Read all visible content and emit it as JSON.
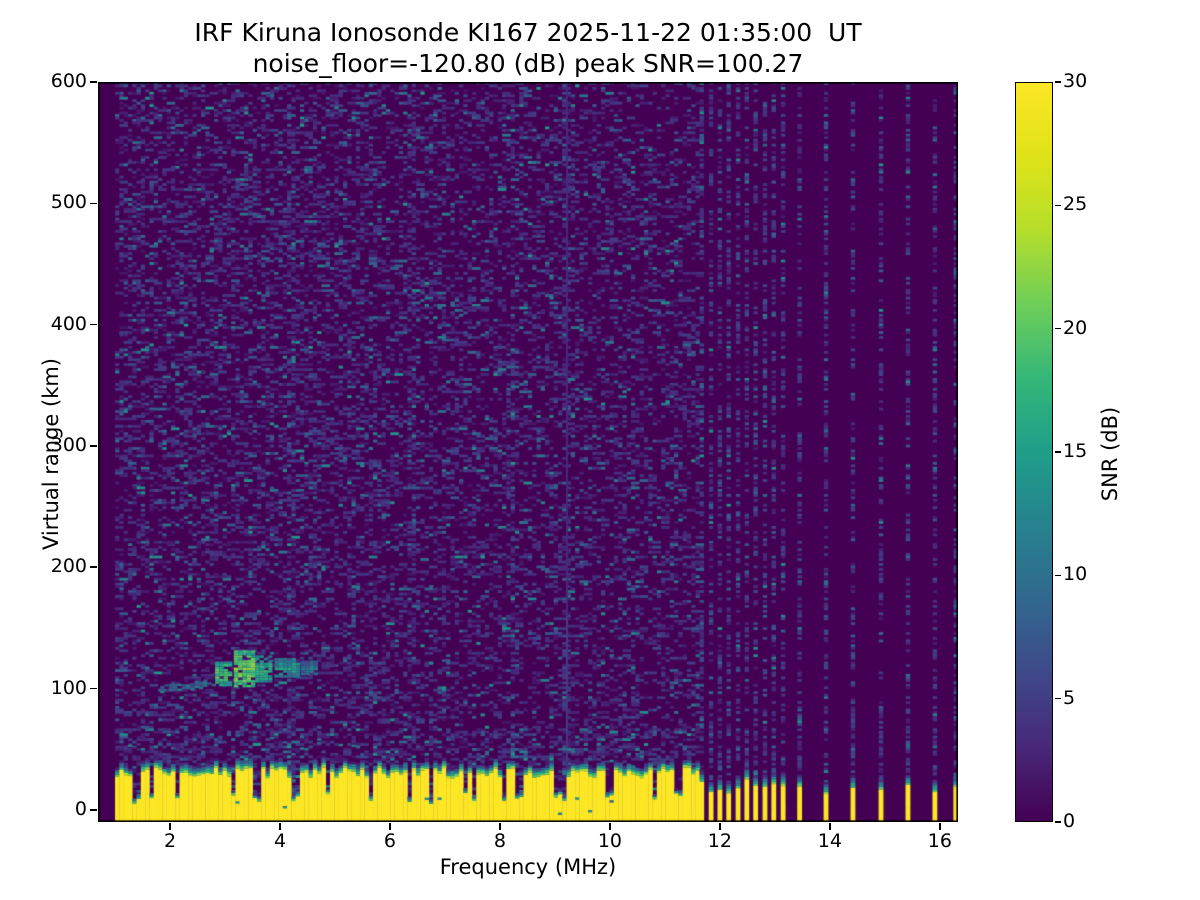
{
  "chart_data": {
    "type": "heatmap",
    "title": "IRF Kiruna Ionosonde KI167 2025-11-22 01:35:00  UT",
    "subtitle": "noise_floor=-120.80 (dB) peak SNR=100.27",
    "noise_floor_db": -120.8,
    "peak_snr_db": 100.27,
    "xlabel": "Frequency (MHz)",
    "ylabel": "Virtual range (km)",
    "xlim": [
      0.69,
      16.33
    ],
    "ylim": [
      -10,
      600
    ],
    "xticks": [
      2,
      4,
      6,
      8,
      10,
      12,
      14,
      16
    ],
    "yticks": [
      0,
      100,
      200,
      300,
      400,
      500,
      600
    ],
    "grid": false,
    "colorbar": {
      "label": "SNR (dB)",
      "min": 0,
      "max": 30,
      "ticks": [
        0,
        5,
        10,
        15,
        20,
        25,
        30
      ],
      "colormap": "viridis",
      "stops": [
        [
          0,
          "#440154"
        ],
        [
          3,
          "#482878"
        ],
        [
          6,
          "#3e4989"
        ],
        [
          9,
          "#31688e"
        ],
        [
          12,
          "#26828e"
        ],
        [
          15,
          "#1f9e89"
        ],
        [
          18,
          "#35b779"
        ],
        [
          21,
          "#6ece58"
        ],
        [
          24,
          "#b5de2b"
        ],
        [
          27,
          "#dfe318"
        ],
        [
          30,
          "#fde725"
        ]
      ]
    },
    "features": {
      "sweep_start_mhz": 1.0,
      "continuous_sweep_end_mhz": 11.6,
      "discrete_frequencies_mhz": [
        11.67,
        11.84,
        12.0,
        12.16,
        12.33,
        12.49,
        12.65,
        12.82,
        12.98,
        13.15,
        13.45,
        13.93,
        14.42,
        14.93,
        15.42,
        15.91,
        16.29
      ],
      "direct_signal_top_km": 30,
      "direct_signal_transition_km": 13,
      "notch_frequencies_mhz": [
        1.35,
        1.6,
        2.1,
        3.1,
        3.55,
        4.25,
        5.6,
        6.3,
        7.35,
        8.35,
        9.1,
        9.95,
        10.8,
        11.2
      ],
      "busy_columns_mhz": [
        4.15,
        6.35,
        8.2,
        9.2
      ],
      "interference_line_mhz": 9.2,
      "noise_speckle_fraction": 0.28,
      "echo_trace_segments": [
        {
          "f_mhz": [
            1.82,
            2.8
          ],
          "range_km": [
            101,
            106
          ],
          "thickness_km": 5,
          "snr_db": 10,
          "shape": "line"
        },
        {
          "f_mhz": [
            2.82,
            3.12
          ],
          "range_km": [
            104,
            123
          ],
          "snr_db": 19,
          "shape": "blob"
        },
        {
          "f_mhz": [
            3.16,
            3.5
          ],
          "range_km": [
            103,
            133
          ],
          "snr_db": 21,
          "shape": "blob"
        },
        {
          "f_mhz": [
            3.55,
            3.82
          ],
          "range_km": [
            107,
            128
          ],
          "snr_db": 17,
          "shape": "blob"
        },
        {
          "f_mhz": [
            3.9,
            4.33
          ],
          "range_km": [
            111,
            126
          ],
          "snr_db": 15,
          "shape": "blob"
        },
        {
          "f_mhz": [
            4.38,
            4.62
          ],
          "range_km": [
            113,
            124
          ],
          "snr_db": 12,
          "shape": "blob"
        }
      ]
    }
  }
}
